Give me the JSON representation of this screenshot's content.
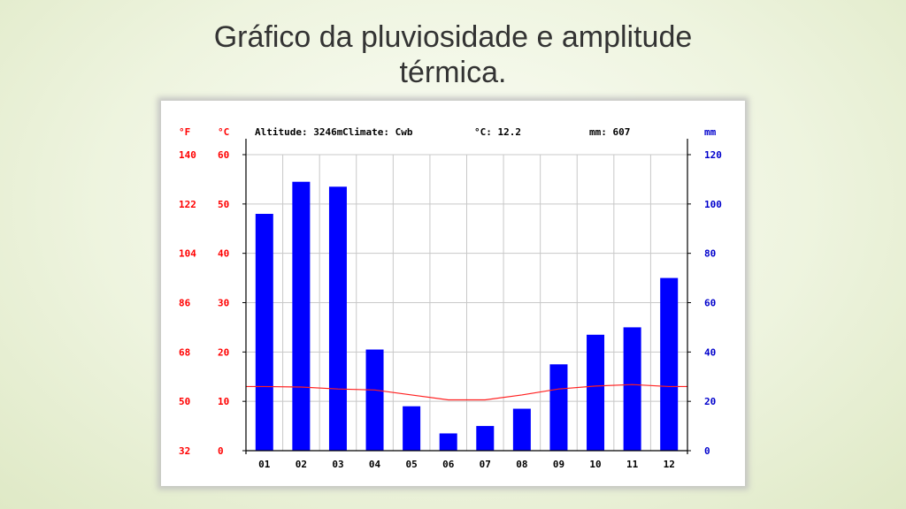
{
  "title_line1": "Gráfico da pluviosidade e amplitude",
  "title_line2": "térmica.",
  "chart_data": {
    "type": "bar",
    "categories": [
      "01",
      "02",
      "03",
      "04",
      "05",
      "06",
      "07",
      "08",
      "09",
      "10",
      "11",
      "12"
    ],
    "series": [
      {
        "kind": "bar",
        "axis": "right",
        "values": [
          96,
          109,
          107,
          41,
          18,
          7,
          10,
          17,
          35,
          47,
          50,
          70
        ]
      },
      {
        "kind": "line",
        "axis": "left-c",
        "values": [
          13.0,
          12.9,
          12.5,
          12.3,
          11.3,
          10.3,
          10.3,
          11.3,
          12.5,
          13.1,
          13.4,
          13.0
        ]
      }
    ],
    "header": {
      "altitude": "Altitude: 3246m",
      "climate": "Climate: Cwb",
      "temp": "°C: 12.2",
      "rain": "mm: 607"
    },
    "unit_f": "°F",
    "unit_c": "°C",
    "unit_mm": "mm",
    "yticks_f": [
      "140",
      "122",
      "104",
      "86",
      "68",
      "50",
      "32"
    ],
    "yticks_c": [
      "60",
      "50",
      "40",
      "30",
      "20",
      "10",
      "0"
    ],
    "yticks_mm": [
      "120",
      "100",
      "80",
      "60",
      "40",
      "20",
      "0"
    ],
    "ylim_c": [
      0,
      60
    ],
    "ylim_mm": [
      0,
      120
    ],
    "grid": true,
    "colors": {
      "bar": "#0000ff",
      "line": "#ff2020",
      "temp_axis": "#ff0000",
      "rain_axis": "#0000cc",
      "grid": "#c8c8c8"
    }
  }
}
